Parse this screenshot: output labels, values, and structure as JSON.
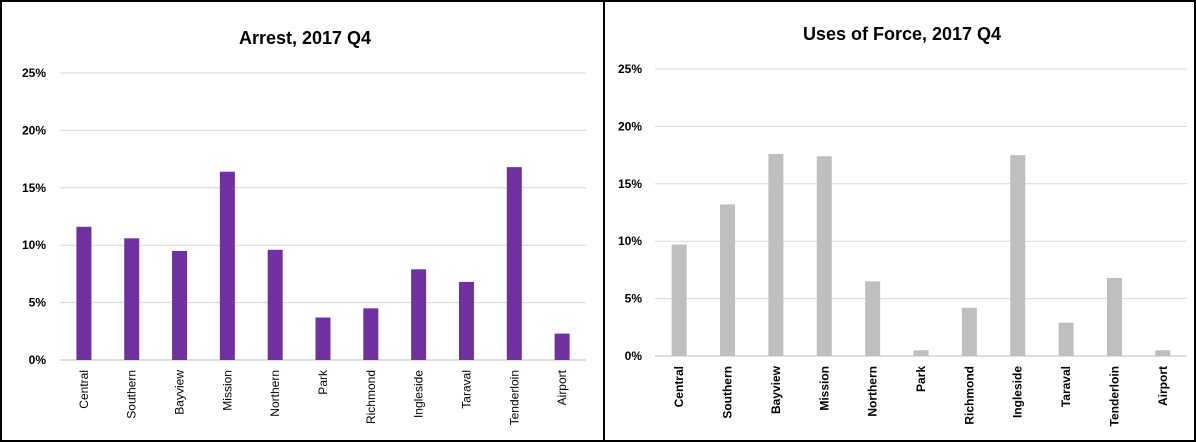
{
  "chart_data": [
    {
      "type": "bar",
      "title": "Arrest, 2017 Q4",
      "xlabel": "",
      "ylabel": "",
      "ylim": [
        0,
        25
      ],
      "yticks": [
        "0%",
        "5%",
        "10%",
        "15%",
        "20%",
        "25%"
      ],
      "grid": true,
      "color": "#7030a0",
      "categories": [
        "Central",
        "Southern",
        "Bayview",
        "Mission",
        "Northern",
        "Park",
        "Richmond",
        "Ingleside",
        "Taraval",
        "Tenderloin",
        "Airport"
      ],
      "values": [
        11.6,
        10.6,
        9.5,
        16.4,
        9.6,
        3.7,
        4.5,
        7.9,
        6.8,
        16.8,
        2.3
      ]
    },
    {
      "type": "bar",
      "title": "Uses of Force, 2017 Q4",
      "xlabel": "",
      "ylabel": "",
      "ylim": [
        0,
        25
      ],
      "yticks": [
        "0%",
        "5%",
        "10%",
        "15%",
        "20%",
        "25%"
      ],
      "grid": true,
      "color": "#bfbfbf",
      "categories": [
        "Central",
        "Southern",
        "Bayview",
        "Mission",
        "Northern",
        "Park",
        "Richmond",
        "Ingleside",
        "Taraval",
        "Tenderloin",
        "Airport"
      ],
      "values": [
        9.7,
        13.2,
        17.6,
        17.4,
        6.5,
        0.5,
        4.2,
        17.5,
        2.9,
        6.8,
        0.5
      ]
    }
  ]
}
